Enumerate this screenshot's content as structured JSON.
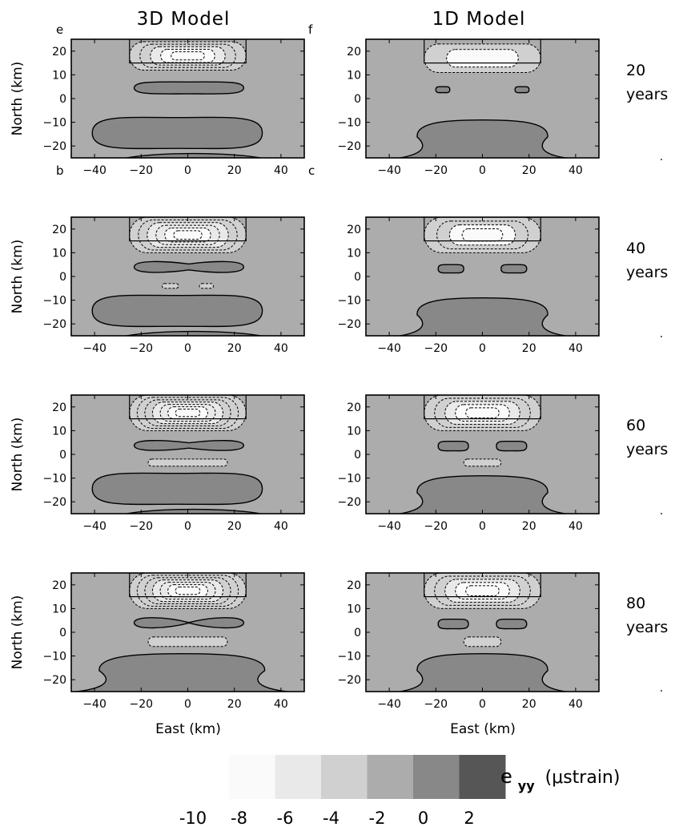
{
  "column_titles": [
    "3D Model",
    "1D Model"
  ],
  "corner_letters": [
    "e",
    "f",
    "b",
    "c"
  ],
  "row_labels": [
    {
      "value": "20",
      "unit": "years"
    },
    {
      "value": "40",
      "unit": "years"
    },
    {
      "value": "60",
      "unit": "years"
    },
    {
      "value": "80",
      "unit": "years"
    }
  ],
  "colorbar": {
    "symbol_main": "e",
    "symbol_sub": "yy",
    "units": "(μstrain)",
    "ticks": [
      "-10",
      "-8",
      "-6",
      "-4",
      "-2",
      "0",
      "2"
    ],
    "colors": [
      "#fafafa",
      "#e9e9e9",
      "#d0d0d0",
      "#acacac",
      "#888888",
      "#565656"
    ]
  },
  "chart_data": {
    "type": "contour",
    "xlabel": "East (km)",
    "ylabel": "North (km)",
    "xlim": [
      -50,
      50
    ],
    "ylim": [
      -25,
      25
    ],
    "xticks": [
      -40,
      -20,
      0,
      20,
      40
    ],
    "yticks": [
      -20,
      -10,
      0,
      10,
      20
    ],
    "background_level": "-2 to 0",
    "fault_box": {
      "x": [
        -25,
        25
      ],
      "y": [
        15,
        25
      ]
    },
    "panels": [
      {
        "model": "3D Model",
        "years": 20,
        "features": [
          {
            "type": "negative_dashed",
            "x": [
              -25,
              25
            ],
            "y": [
              12,
              24
            ],
            "levels": 5
          },
          {
            "type": "positive_lobe",
            "x": [
              -23,
              24
            ],
            "y": [
              2,
              7
            ],
            "waist": false
          },
          {
            "type": "positive_lobe",
            "x": [
              -41,
              32
            ],
            "y": [
              -21,
              -8
            ]
          },
          {
            "type": "bottom_strip",
            "x": [
              -30,
              35
            ],
            "y": [
              -25,
              -22
            ]
          }
        ]
      },
      {
        "model": "1D Model",
        "years": 20,
        "features": [
          {
            "type": "negative_dashed",
            "x": [
              -25,
              25
            ],
            "y": [
              11,
              23
            ],
            "levels": 2
          },
          {
            "type": "positive_lobe",
            "x": [
              -20,
              -14
            ],
            "y": [
              2.5,
              5
            ]
          },
          {
            "type": "positive_lobe",
            "x": [
              14,
              20
            ],
            "y": [
              2.5,
              5
            ]
          },
          {
            "type": "positive_pedestal",
            "x": [
              -28,
              28
            ],
            "y": [
              -25,
              -9
            ]
          }
        ]
      },
      {
        "model": "3D Model",
        "years": 40,
        "features": [
          {
            "type": "negative_dashed",
            "x": [
              -25,
              25
            ],
            "y": [
              10,
              25
            ],
            "levels": 6
          },
          {
            "type": "positive_lobe",
            "x": [
              -23,
              24
            ],
            "y": [
              1.5,
              6.5
            ],
            "waist": true
          },
          {
            "type": "negative_dashed",
            "x": [
              -11,
              -4
            ],
            "y": [
              -5,
              -3
            ]
          },
          {
            "type": "negative_dashed",
            "x": [
              5,
              11
            ],
            "y": [
              -5,
              -3
            ]
          },
          {
            "type": "positive_lobe",
            "x": [
              -41,
              32
            ],
            "y": [
              -21,
              -8
            ]
          },
          {
            "type": "bottom_strip",
            "x": [
              -30,
              35
            ],
            "y": [
              -25,
              -22
            ]
          }
        ]
      },
      {
        "model": "1D Model",
        "years": 40,
        "features": [
          {
            "type": "negative_dashed",
            "x": [
              -25,
              25
            ],
            "y": [
              10,
              25
            ],
            "levels": 4
          },
          {
            "type": "positive_lobe",
            "x": [
              -19,
              -8
            ],
            "y": [
              1.5,
              5
            ]
          },
          {
            "type": "positive_lobe",
            "x": [
              8,
              19
            ],
            "y": [
              1.5,
              5
            ]
          },
          {
            "type": "positive_pedestal",
            "x": [
              -28,
              28
            ],
            "y": [
              -25,
              -9
            ]
          }
        ]
      },
      {
        "model": "3D Model",
        "years": 60,
        "features": [
          {
            "type": "negative_dashed",
            "x": [
              -25,
              25
            ],
            "y": [
              10,
              25
            ],
            "levels": 7
          },
          {
            "type": "positive_lobe",
            "x": [
              -23,
              24
            ],
            "y": [
              1.5,
              6
            ],
            "waist": true
          },
          {
            "type": "negative_dashed",
            "x": [
              -17,
              17
            ],
            "y": [
              -5,
              -2
            ]
          },
          {
            "type": "positive_lobe",
            "x": [
              -41,
              32
            ],
            "y": [
              -21,
              -8
            ]
          },
          {
            "type": "bottom_strip",
            "x": [
              -30,
              35
            ],
            "y": [
              -25,
              -22
            ]
          }
        ]
      },
      {
        "model": "1D Model",
        "years": 60,
        "features": [
          {
            "type": "negative_dashed",
            "x": [
              -25,
              25
            ],
            "y": [
              10,
              25
            ],
            "levels": 5
          },
          {
            "type": "positive_lobe",
            "x": [
              -19,
              -6
            ],
            "y": [
              1.5,
              5.5
            ]
          },
          {
            "type": "positive_lobe",
            "x": [
              6,
              19
            ],
            "y": [
              1.5,
              5.5
            ]
          },
          {
            "type": "negative_dashed",
            "x": [
              -8,
              8
            ],
            "y": [
              -5,
              -2
            ]
          },
          {
            "type": "positive_pedestal",
            "x": [
              -28,
              28
            ],
            "y": [
              -25,
              -9
            ]
          }
        ]
      },
      {
        "model": "3D Model",
        "years": 80,
        "features": [
          {
            "type": "negative_dashed",
            "x": [
              -25,
              25
            ],
            "y": [
              10,
              25
            ],
            "levels": 7
          },
          {
            "type": "positive_lobe",
            "x": [
              -23,
              24
            ],
            "y": [
              1.5,
              6.5
            ],
            "waist": "pinched"
          },
          {
            "type": "negative_dashed",
            "x": [
              -17,
              17
            ],
            "y": [
              -6,
              -2
            ]
          },
          {
            "type": "positive_pedestal",
            "x": [
              -38,
              33
            ],
            "y": [
              -25,
              -9
            ]
          }
        ]
      },
      {
        "model": "1D Model",
        "years": 80,
        "features": [
          {
            "type": "negative_dashed",
            "x": [
              -25,
              25
            ],
            "y": [
              10,
              25
            ],
            "levels": 5
          },
          {
            "type": "positive_lobe",
            "x": [
              -19,
              -6
            ],
            "y": [
              1.5,
              5.5
            ]
          },
          {
            "type": "positive_lobe",
            "x": [
              6,
              19
            ],
            "y": [
              1.5,
              5.5
            ]
          },
          {
            "type": "negative_dashed",
            "x": [
              -8,
              8
            ],
            "y": [
              -6,
              -2
            ]
          },
          {
            "type": "positive_pedestal",
            "x": [
              -28,
              28
            ],
            "y": [
              -25,
              -9
            ]
          }
        ]
      }
    ]
  }
}
